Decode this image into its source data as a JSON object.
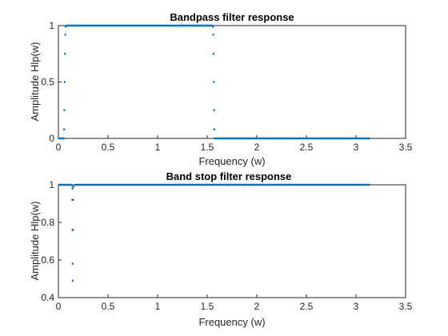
{
  "colors": {
    "series": "#0072BD",
    "axis": "#262626",
    "background": "#ffffff"
  },
  "chart_data": [
    {
      "type": "scatter",
      "title": "Bandpass filter response",
      "xlabel": "Frequency (w)",
      "ylabel": "Amplitude Hlp(w)",
      "xlim": [
        0,
        3.5
      ],
      "ylim": [
        0,
        1
      ],
      "xticks": [
        "0",
        "0.5",
        "1",
        "1.5",
        "2",
        "2.5",
        "3",
        "3.5"
      ],
      "yticks": [
        "0",
        "0.5",
        "1"
      ],
      "grid": false,
      "series": [
        {
          "marker": "dot",
          "segments": [
            {
              "x_range": [
                0,
                0.052
              ],
              "y": 0
            },
            {
              "x_range": [
                0.075,
                1.555
              ],
              "y": 1
            },
            {
              "x_range": [
                1.585,
                3.14
              ],
              "y": 0
            }
          ],
          "points": [
            {
              "x": 0.055,
              "y": 0.0
            },
            {
              "x": 0.058,
              "y": 0.08
            },
            {
              "x": 0.06,
              "y": 0.25
            },
            {
              "x": 0.063,
              "y": 0.5
            },
            {
              "x": 0.066,
              "y": 0.75
            },
            {
              "x": 0.069,
              "y": 0.92
            },
            {
              "x": 0.072,
              "y": 0.99
            },
            {
              "x": 1.558,
              "y": 0.99
            },
            {
              "x": 1.561,
              "y": 0.92
            },
            {
              "x": 1.564,
              "y": 0.75
            },
            {
              "x": 1.567,
              "y": 0.5
            },
            {
              "x": 1.57,
              "y": 0.25
            },
            {
              "x": 1.573,
              "y": 0.08
            },
            {
              "x": 1.576,
              "y": 0.0
            }
          ]
        }
      ]
    },
    {
      "type": "scatter",
      "title": "Band stop filter response",
      "xlabel": "Frequency (w)",
      "ylabel": "Amplitude Hlp(w)",
      "xlim": [
        0,
        3.5
      ],
      "ylim": [
        0.4,
        1
      ],
      "xticks": [
        "0",
        "0.5",
        "1",
        "1.5",
        "2",
        "2.5",
        "3",
        "3.5"
      ],
      "yticks": [
        "0.4",
        "0.6",
        "0.8",
        "1"
      ],
      "grid": false,
      "series": [
        {
          "marker": "dot",
          "segments": [
            {
              "x_range": [
                0,
                0.13
              ],
              "y": 1
            },
            {
              "x_range": [
                0.16,
                3.14
              ],
              "y": 1
            }
          ],
          "points": [
            {
              "x": 0.14,
              "y": 0.995
            },
            {
              "x": 0.142,
              "y": 0.98
            },
            {
              "x": 0.14,
              "y": 0.92
            },
            {
              "x": 0.148,
              "y": 0.92
            },
            {
              "x": 0.142,
              "y": 0.76
            },
            {
              "x": 0.146,
              "y": 0.76
            },
            {
              "x": 0.144,
              "y": 0.58
            },
            {
              "x": 0.144,
              "y": 0.49
            },
            {
              "x": 0.152,
              "y": 0.99
            }
          ]
        }
      ]
    }
  ]
}
